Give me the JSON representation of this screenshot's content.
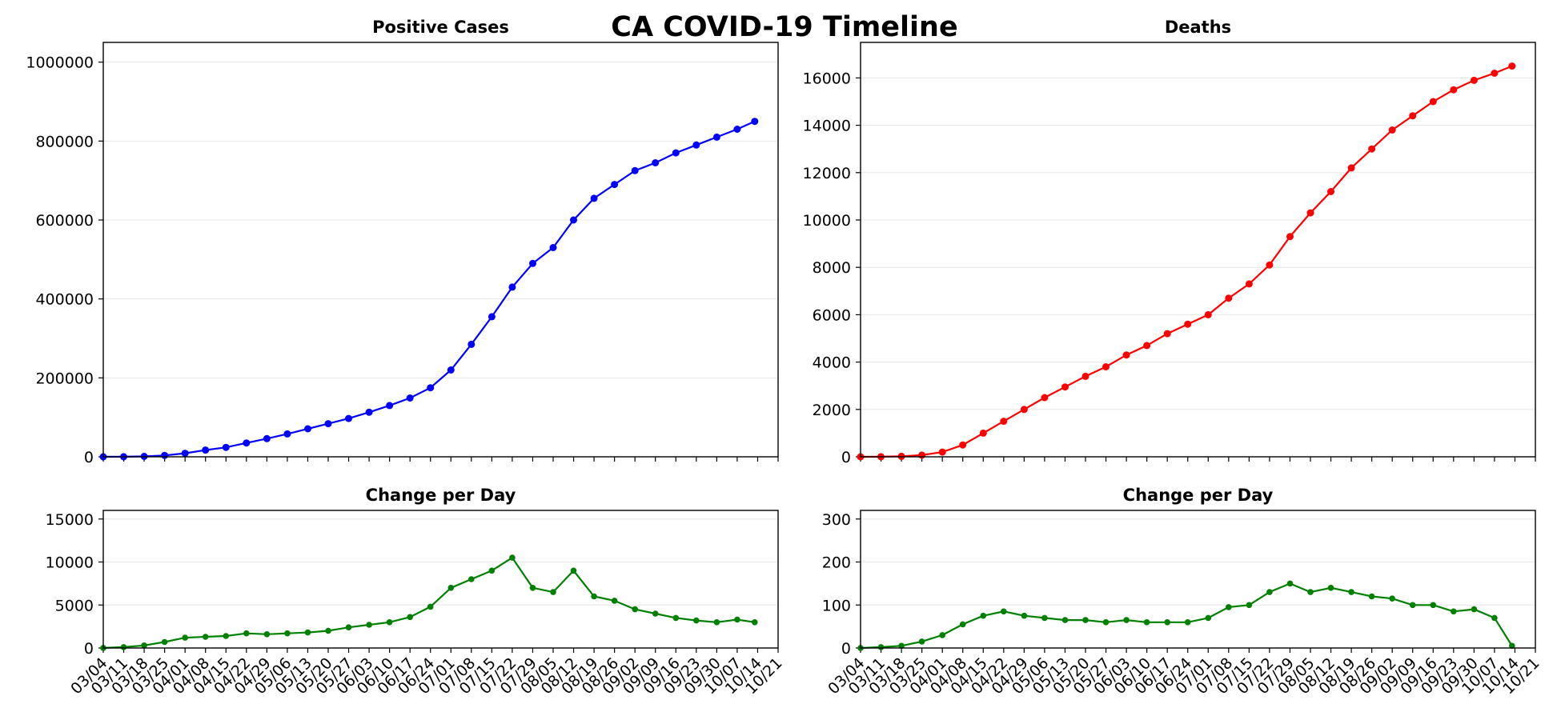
{
  "figure_title": "CA COVID-19 Timeline",
  "colors": {
    "cases": "#0000ff",
    "deaths": "#ff0000",
    "change": "#008000",
    "grid": "#e6e6e6"
  },
  "chart_data": [
    {
      "type": "line",
      "title": "Positive Cases",
      "xlabel": "",
      "ylabel": "",
      "x": [
        "2020-03-04",
        "2020-03-11",
        "2020-03-18",
        "2020-03-25",
        "2020-04-01",
        "2020-04-08",
        "2020-04-15",
        "2020-04-22",
        "2020-04-29",
        "2020-05-06",
        "2020-05-13",
        "2020-05-20",
        "2020-05-27",
        "2020-06-03",
        "2020-06-10",
        "2020-06-17",
        "2020-06-24",
        "2020-07-01",
        "2020-07-08",
        "2020-07-15",
        "2020-07-22",
        "2020-07-29",
        "2020-08-05",
        "2020-08-12",
        "2020-08-19",
        "2020-08-26",
        "2020-09-02",
        "2020-09-09",
        "2020-09-16",
        "2020-09-23",
        "2020-09-30",
        "2020-10-07",
        "2020-10-13"
      ],
      "series": [
        {
          "values": [
            50,
            200,
            1000,
            3500,
            9000,
            17000,
            24000,
            35000,
            46000,
            58000,
            71000,
            84000,
            97000,
            113000,
            130000,
            149000,
            175000,
            220000,
            285000,
            355000,
            430000,
            490000,
            530000,
            600000,
            655000,
            690000,
            725000,
            745000,
            770000,
            790000,
            810000,
            830000,
            850000
          ]
        }
      ],
      "ylim": [
        0,
        1050000
      ],
      "yticks": [
        "0",
        "200000",
        "400000",
        "600000",
        "800000",
        "1000000"
      ],
      "grid": "horizontal"
    },
    {
      "type": "line",
      "title": "Deaths",
      "xlabel": "",
      "ylabel": "",
      "x": [
        "2020-03-04",
        "2020-03-11",
        "2020-03-18",
        "2020-03-25",
        "2020-04-01",
        "2020-04-08",
        "2020-04-15",
        "2020-04-22",
        "2020-04-29",
        "2020-05-06",
        "2020-05-13",
        "2020-05-20",
        "2020-05-27",
        "2020-06-03",
        "2020-06-10",
        "2020-06-17",
        "2020-06-24",
        "2020-07-01",
        "2020-07-08",
        "2020-07-15",
        "2020-07-22",
        "2020-07-29",
        "2020-08-05",
        "2020-08-12",
        "2020-08-19",
        "2020-08-26",
        "2020-09-02",
        "2020-09-09",
        "2020-09-16",
        "2020-09-23",
        "2020-09-30",
        "2020-10-07",
        "2020-10-13"
      ],
      "series": [
        {
          "values": [
            0,
            5,
            20,
            70,
            200,
            500,
            1000,
            1500,
            2000,
            2500,
            2950,
            3400,
            3800,
            4300,
            4700,
            5200,
            5600,
            6000,
            6700,
            7300,
            8100,
            9300,
            10300,
            11200,
            12200,
            13000,
            13800,
            14400,
            15000,
            15500,
            15900,
            16200,
            16500
          ]
        }
      ],
      "ylim": [
        0,
        17500
      ],
      "yticks": [
        "0",
        "2000",
        "4000",
        "6000",
        "8000",
        "10000",
        "12000",
        "14000",
        "16000"
      ],
      "grid": "horizontal"
    },
    {
      "type": "line",
      "title": "Change per Day",
      "xlabel": "",
      "ylabel": "",
      "x": [
        "2020-03-04",
        "2020-03-11",
        "2020-03-18",
        "2020-03-25",
        "2020-04-01",
        "2020-04-08",
        "2020-04-15",
        "2020-04-22",
        "2020-04-29",
        "2020-05-06",
        "2020-05-13",
        "2020-05-20",
        "2020-05-27",
        "2020-06-03",
        "2020-06-10",
        "2020-06-17",
        "2020-06-24",
        "2020-07-01",
        "2020-07-08",
        "2020-07-15",
        "2020-07-22",
        "2020-07-29",
        "2020-08-05",
        "2020-08-12",
        "2020-08-19",
        "2020-08-26",
        "2020-09-02",
        "2020-09-09",
        "2020-09-16",
        "2020-09-23",
        "2020-09-30",
        "2020-10-07",
        "2020-10-13"
      ],
      "series": [
        {
          "values": [
            10,
            100,
            300,
            700,
            1200,
            1300,
            1400,
            1700,
            1600,
            1700,
            1800,
            2000,
            2400,
            2700,
            3000,
            3600,
            4800,
            7000,
            8000,
            9000,
            10500,
            7000,
            6500,
            9000,
            6000,
            5500,
            4500,
            4000,
            3500,
            3200,
            3000,
            3300,
            3000
          ]
        }
      ],
      "ylim": [
        0,
        16000
      ],
      "yticks": [
        "0",
        "5000",
        "10000",
        "15000"
      ],
      "xticks": [
        "03/04",
        "03/11",
        "03/18",
        "03/25",
        "04/01",
        "04/08",
        "04/15",
        "04/22",
        "04/29",
        "05/06",
        "05/13",
        "05/20",
        "05/27",
        "06/03",
        "06/10",
        "06/17",
        "06/24",
        "07/01",
        "07/08",
        "07/15",
        "07/22",
        "07/29",
        "08/05",
        "08/12",
        "08/19",
        "08/26",
        "09/02",
        "09/09",
        "09/16",
        "09/23",
        "09/30",
        "10/07",
        "10/14",
        "10/21"
      ],
      "grid": "horizontal"
    },
    {
      "type": "line",
      "title": "Change per Day",
      "xlabel": "",
      "ylabel": "",
      "x": [
        "2020-03-04",
        "2020-03-11",
        "2020-03-18",
        "2020-03-25",
        "2020-04-01",
        "2020-04-08",
        "2020-04-15",
        "2020-04-22",
        "2020-04-29",
        "2020-05-06",
        "2020-05-13",
        "2020-05-20",
        "2020-05-27",
        "2020-06-03",
        "2020-06-10",
        "2020-06-17",
        "2020-06-24",
        "2020-07-01",
        "2020-07-08",
        "2020-07-15",
        "2020-07-22",
        "2020-07-29",
        "2020-08-05",
        "2020-08-12",
        "2020-08-19",
        "2020-08-26",
        "2020-09-02",
        "2020-09-09",
        "2020-09-16",
        "2020-09-23",
        "2020-09-30",
        "2020-10-07",
        "2020-10-13"
      ],
      "series": [
        {
          "values": [
            0,
            2,
            5,
            15,
            30,
            55,
            75,
            85,
            75,
            70,
            65,
            65,
            60,
            65,
            60,
            60,
            60,
            70,
            95,
            100,
            130,
            150,
            130,
            140,
            130,
            120,
            115,
            100,
            100,
            85,
            90,
            70,
            5
          ]
        }
      ],
      "ylim": [
        0,
        320
      ],
      "yticks": [
        "0",
        "100",
        "200",
        "300"
      ],
      "xticks": [
        "03/04",
        "03/11",
        "03/18",
        "03/25",
        "04/01",
        "04/08",
        "04/15",
        "04/22",
        "04/29",
        "05/06",
        "05/13",
        "05/20",
        "05/27",
        "06/03",
        "06/10",
        "06/17",
        "06/24",
        "07/01",
        "07/08",
        "07/15",
        "07/22",
        "07/29",
        "08/05",
        "08/12",
        "08/19",
        "08/26",
        "09/02",
        "09/09",
        "09/16",
        "09/23",
        "09/30",
        "10/07",
        "10/14",
        "10/21"
      ],
      "grid": "horizontal"
    }
  ]
}
